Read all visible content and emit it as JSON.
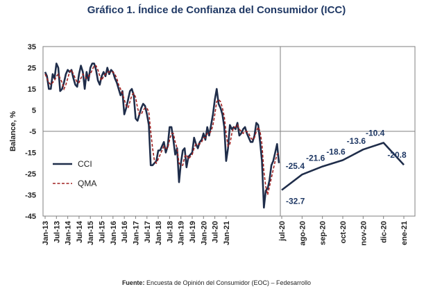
{
  "title": "Gráfico 1. Índice de Confianza del Consumidor (ICC)",
  "source": {
    "label": "Fuente:",
    "text": " Encuesta de Opinión del Consumidor (EOC) – Fedesarrollo"
  },
  "colors": {
    "cci": "#1f2d4a",
    "qma": "#a02020",
    "grid": "#bfbfbf",
    "axis": "#7f7f7f"
  },
  "chart_data": [
    {
      "type": "line",
      "title": "",
      "ylabel": "Balance, %",
      "ylim": [
        -45,
        35
      ],
      "yticks": [
        35,
        25,
        15,
        5,
        -5,
        -15,
        -25,
        -35,
        -45
      ],
      "xtick_labels": [
        "Jan-13",
        "Jul-13",
        "Jan-14",
        "Jul-14",
        "Jan-15",
        "Jul-15",
        "Jan-16",
        "Jul-16",
        "Jan-17",
        "Jul-17",
        "Jan-18",
        "Jul-18",
        "Jan-19",
        "Jul-19",
        "Jan-20",
        "Jul-20",
        "Jan-21"
      ],
      "legend": [
        "CCI",
        "QMA"
      ],
      "legend_placement": "left-lower",
      "series": [
        {
          "name": "CCI",
          "values": [
            23,
            21,
            15,
            15,
            22,
            20,
            27,
            25,
            14,
            15,
            18,
            22,
            24,
            23,
            24,
            20,
            17,
            16,
            22,
            26,
            23,
            15,
            23,
            19,
            25,
            27,
            27,
            24,
            19,
            17,
            21,
            23,
            21,
            25,
            22,
            24,
            23,
            20,
            18,
            15,
            12,
            14,
            3,
            6,
            10,
            14,
            15,
            12,
            1,
            0,
            3,
            6,
            8,
            7,
            3,
            -2,
            -21,
            -21,
            -20,
            -19,
            -14,
            -14,
            -12,
            -10,
            -15,
            -12,
            -3,
            -3,
            -9,
            -16,
            -13,
            -29,
            -20,
            -14,
            -13,
            -22,
            -17,
            -16,
            -15,
            -8,
            -11,
            -13,
            -10,
            -9,
            -6,
            -9,
            -3,
            -7,
            -2,
            3,
            10,
            15,
            8,
            6,
            3,
            -3,
            -19,
            -13,
            -2,
            -4,
            -3,
            -4,
            -1,
            -7,
            -6,
            -4,
            -3,
            -6,
            -8,
            -10,
            -10,
            -7,
            -1,
            -2,
            -10,
            -19,
            -41,
            -33,
            -32,
            -28,
            -21,
            -19,
            -15,
            -11,
            -20
          ]
        },
        {
          "name": "QMA",
          "values": [
            22,
            20,
            18,
            17,
            18,
            19,
            21,
            22,
            20,
            18,
            15,
            17,
            20,
            23,
            24,
            22,
            20,
            18,
            18,
            20,
            22,
            21,
            20,
            21,
            22,
            24,
            26,
            26,
            24,
            21,
            19,
            21,
            22,
            23,
            23,
            23,
            23,
            22,
            20,
            17,
            15,
            13,
            10,
            7,
            6,
            9,
            12,
            13,
            11,
            6,
            3,
            3,
            5,
            6,
            6,
            4,
            -5,
            -13,
            -19,
            -20,
            -18,
            -16,
            -14,
            -12,
            -13,
            -13,
            -9,
            -6,
            -6,
            -10,
            -13,
            -20,
            -21,
            -21,
            -17,
            -16,
            -18,
            -17,
            -16,
            -13,
            -11,
            -11,
            -11,
            -10,
            -8,
            -8,
            -6,
            -6,
            -5,
            -2,
            3,
            9,
            10,
            9,
            6,
            2,
            -6,
            -12,
            -11,
            -6,
            -3,
            -3,
            -2,
            -4,
            -5,
            -6,
            -5,
            -5,
            -6,
            -8,
            -9,
            -8,
            -5,
            -3,
            -5,
            -11,
            -24,
            -31,
            -35,
            -31,
            -27,
            -23,
            -19,
            -16,
            -15
          ]
        }
      ]
    },
    {
      "type": "line",
      "title": "",
      "categories": [
        "jul-20",
        "ago-20",
        "sep-20",
        "oct-20",
        "nov-20",
        "dic-20",
        "ene-21"
      ],
      "series": [
        {
          "values": [
            -32.7,
            -25.4,
            -21.6,
            -18.6,
            -13.6,
            -10.4,
            -20.8
          ],
          "labels": [
            "-32.7",
            "-25.4",
            "-21.6",
            "-18.6",
            "-13.6",
            "-10.4",
            "-20.8"
          ]
        }
      ]
    }
  ]
}
